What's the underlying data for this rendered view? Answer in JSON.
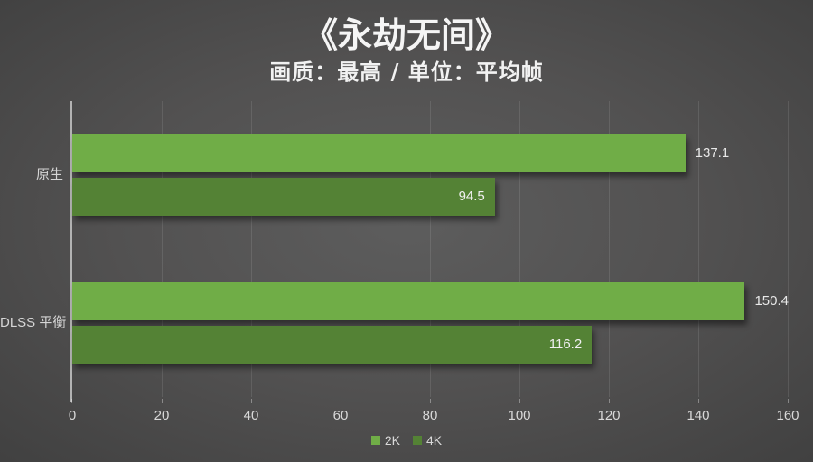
{
  "chart_data": {
    "type": "bar",
    "orientation": "horizontal",
    "title": "《永劫无间》",
    "subtitle": "画质：最高 / 单位：平均帧",
    "categories": [
      "原生",
      "DLSS 平衡"
    ],
    "series": [
      {
        "name": "2K",
        "color": "#70ad47",
        "values": [
          137.1,
          150.4
        ],
        "label_position": "outside"
      },
      {
        "name": "4K",
        "color": "#548235",
        "values": [
          94.5,
          116.2
        ],
        "label_position": "inside"
      }
    ],
    "xlim": [
      0,
      160
    ],
    "x_ticks": [
      0,
      20,
      40,
      60,
      80,
      100,
      120,
      140,
      160
    ],
    "grid": true,
    "legend_position": "bottom",
    "value_decimals": 1
  },
  "colors": {
    "background_center": "#5d5d5d",
    "background_edge": "#252525",
    "axis_line": "#b3b3b3",
    "gridline": "rgba(255,255,255,0.10)",
    "text_light": "#f5f5f5",
    "text_muted": "#d9d9d9",
    "series_2k": "#70ad47",
    "series_4k": "#548235"
  }
}
